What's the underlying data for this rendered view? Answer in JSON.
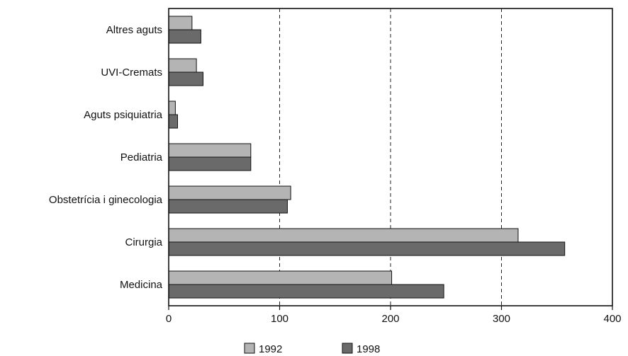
{
  "chart_data": {
    "type": "bar",
    "orientation": "horizontal",
    "categories": [
      "Altres aguts",
      "UVI-Cremats",
      "Aguts psiquiatria",
      "Pediatria",
      "Obstetrícia i ginecologia",
      "Cirurgia",
      "Medicina"
    ],
    "series": [
      {
        "name": "1992",
        "values": [
          21,
          25,
          6,
          74,
          110,
          315,
          201
        ],
        "color": "#b4b4b4"
      },
      {
        "name": "1998",
        "values": [
          29,
          31,
          8,
          74,
          107,
          357,
          248
        ],
        "color": "#6a6a6a"
      }
    ],
    "title": "",
    "xlabel": "",
    "ylabel": "",
    "xlim": [
      0,
      400
    ],
    "xticks": [
      "0",
      "100",
      "200",
      "300",
      "400"
    ],
    "grid": "vertical dashed",
    "legend_position": "bottom"
  }
}
